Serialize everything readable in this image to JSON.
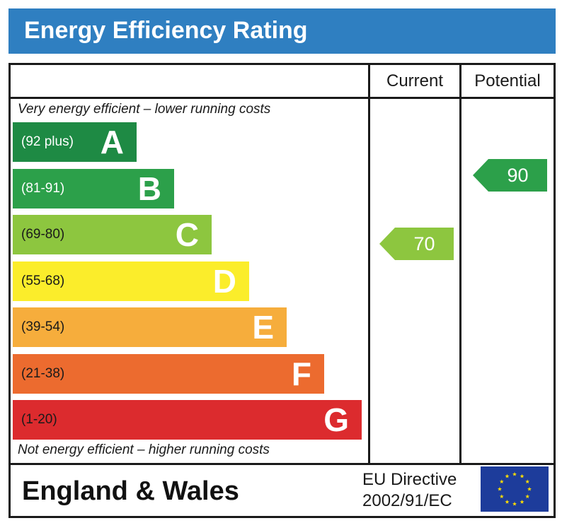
{
  "title": "Energy Efficiency Rating",
  "columns": {
    "current": "Current",
    "potential": "Potential"
  },
  "captions": {
    "top": "Very energy efficient – lower running costs",
    "bottom": "Not energy efficient – higher running costs"
  },
  "footer": {
    "region": "England & Wales",
    "directive_line1": "EU Directive",
    "directive_line2": "2002/91/EC"
  },
  "chart_data": {
    "type": "bar",
    "title": "Energy Efficiency Rating",
    "bands": [
      {
        "letter": "A",
        "range": "(92 plus)",
        "min": 92,
        "max": 100,
        "color": "#1e8a44",
        "range_color": "#ffffff"
      },
      {
        "letter": "B",
        "range": "(81-91)",
        "min": 81,
        "max": 91,
        "color": "#2ca04a",
        "range_color": "#ffffff"
      },
      {
        "letter": "C",
        "range": "(69-80)",
        "min": 69,
        "max": 80,
        "color": "#8dc63f",
        "range_color": "#1a1a1a"
      },
      {
        "letter": "D",
        "range": "(55-68)",
        "min": 55,
        "max": 68,
        "color": "#fbed2b",
        "range_color": "#1a1a1a"
      },
      {
        "letter": "E",
        "range": "(39-54)",
        "min": 39,
        "max": 54,
        "color": "#f6ad3c",
        "range_color": "#1a1a1a"
      },
      {
        "letter": "F",
        "range": "(21-38)",
        "min": 21,
        "max": 38,
        "color": "#ec6b2f",
        "range_color": "#1a1a1a"
      },
      {
        "letter": "G",
        "range": "(1-20)",
        "min": 1,
        "max": 20,
        "color": "#dc2b2e",
        "range_color": "#1a1a1a"
      }
    ],
    "current": {
      "value": 70,
      "band": "C",
      "color": "#8dc63f"
    },
    "potential": {
      "value": 90,
      "band": "B",
      "color": "#2ca04a"
    }
  }
}
